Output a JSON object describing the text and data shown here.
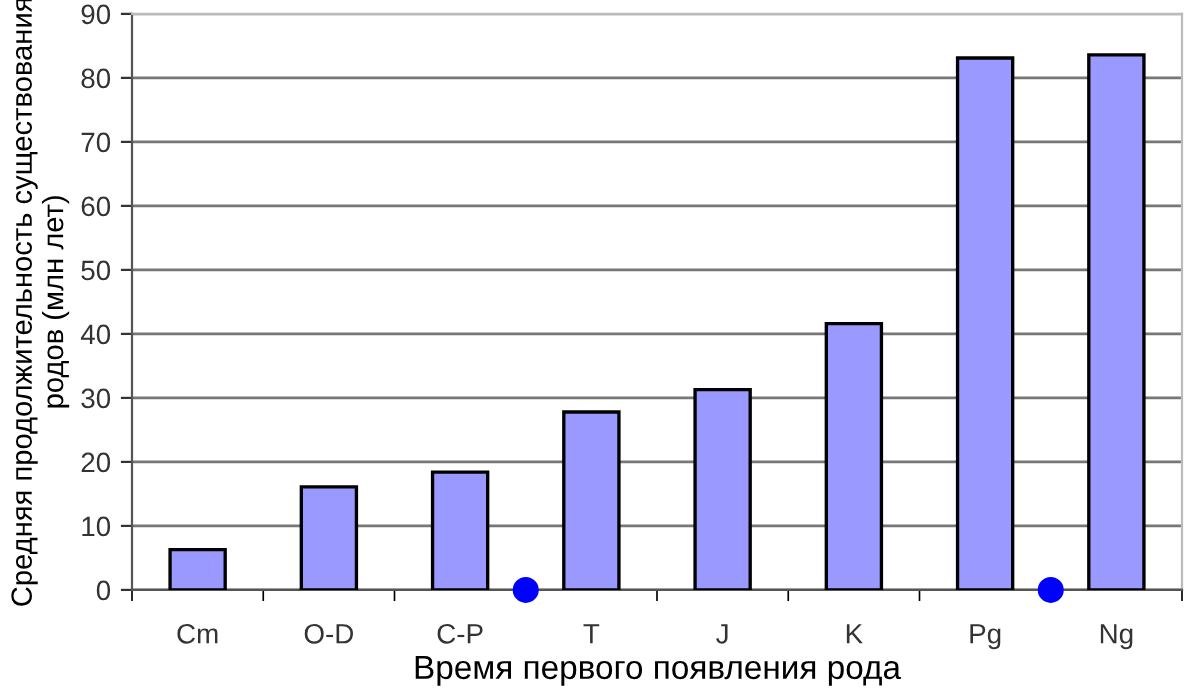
{
  "chart_data": {
    "type": "bar",
    "xlabel": "Время первого появления рода",
    "ylabel": "Средняя продолжительность существования\nродов (млн лет)",
    "categories": [
      "Cm",
      "O-D",
      "C-P",
      "T",
      "J",
      "K",
      "Pg",
      "Ng"
    ],
    "series": [
      {
        "color": "#9999ff",
        "values": [
          6.3,
          16.1,
          18.4,
          27.8,
          31.3,
          41.6,
          83.1,
          83.6
        ]
      }
    ],
    "ylim": [
      0,
      90
    ],
    "yticks": [
      0,
      10,
      20,
      30,
      40,
      50,
      60,
      70,
      80,
      90
    ],
    "grid": "y"
  }
}
